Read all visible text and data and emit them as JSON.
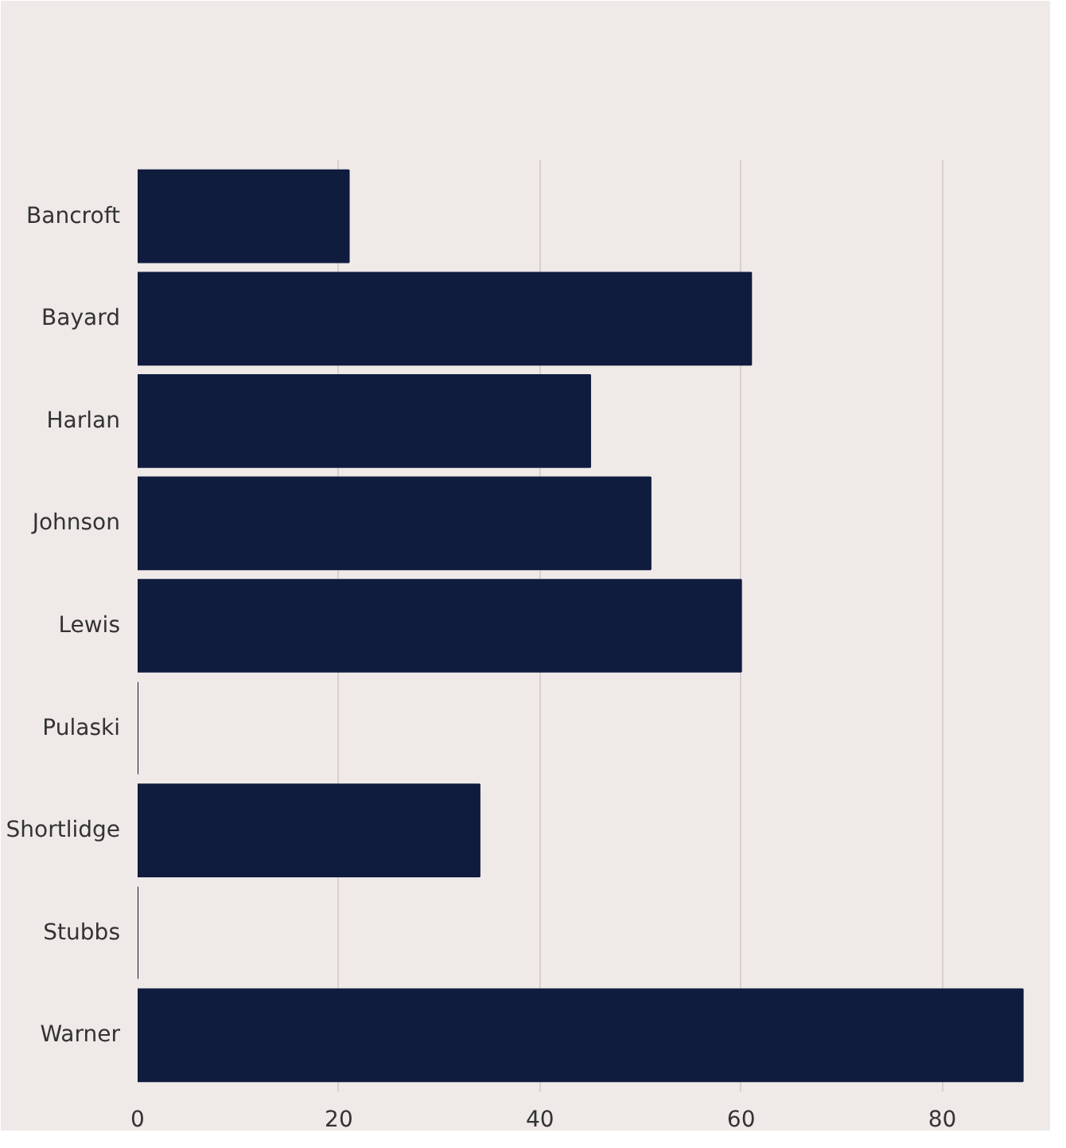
{
  "chart_data": {
    "type": "bar",
    "orientation": "horizontal",
    "categories": [
      "Bancroft",
      "Bayard",
      "Harlan",
      "Johnson",
      "Lewis",
      "Pulaski",
      "Shortlidge",
      "Stubbs",
      "Warner"
    ],
    "values": [
      21,
      61,
      45,
      51,
      60,
      0,
      34,
      0,
      88
    ],
    "color": "#101c3e",
    "xlim": [
      0,
      90
    ],
    "xticks": [
      0,
      20,
      40,
      60,
      80
    ],
    "grid": "x"
  }
}
